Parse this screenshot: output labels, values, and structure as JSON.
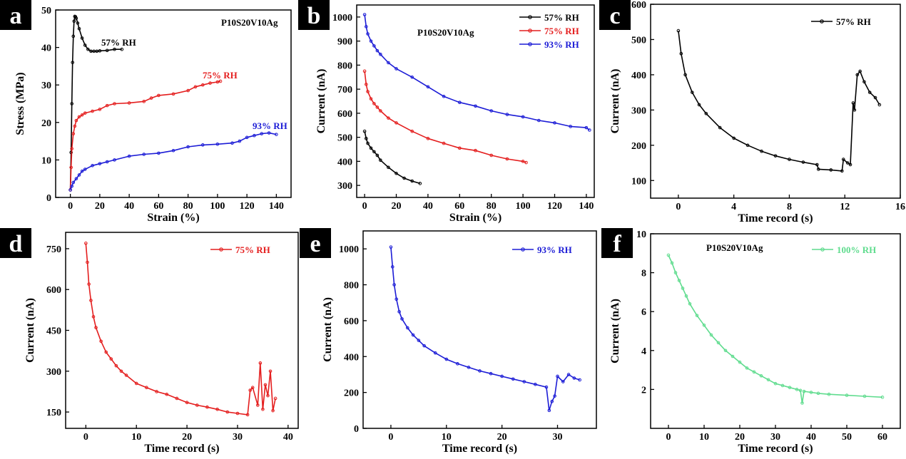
{
  "colors": {
    "black": "#000000",
    "red": "#e41e1e",
    "blue": "#1c1cd6",
    "green": "#5fdc8e"
  },
  "chart_data": [
    {
      "panel": "a",
      "type": "line",
      "title": "P10S20V10Ag",
      "xlabel": "Strain (%)",
      "ylabel": "Stress (MPa)",
      "xlim": [
        -10,
        150
      ],
      "ylim": [
        0,
        50
      ],
      "xticks": [
        0,
        20,
        40,
        60,
        80,
        100,
        120,
        140
      ],
      "yticks": [
        0,
        10,
        20,
        30,
        40,
        50
      ],
      "series": [
        {
          "name": "57% RH",
          "color": "#000000",
          "x": [
            0,
            0.5,
            1,
            1.5,
            2,
            2.5,
            3,
            3.5,
            4,
            5,
            6,
            8,
            10,
            12,
            14,
            16,
            18,
            20,
            25,
            30,
            35
          ],
          "y": [
            2,
            12,
            25,
            36,
            43,
            47,
            48.3,
            48.2,
            47.8,
            46.5,
            45,
            42.5,
            40.6,
            39.5,
            39,
            39,
            39,
            39.1,
            39.2,
            39.5,
            39.5
          ]
        },
        {
          "name": "75% RH",
          "color": "#e41e1e",
          "x": [
            0,
            0.5,
            1,
            2,
            3,
            4,
            6,
            8,
            10,
            15,
            20,
            25,
            30,
            40,
            50,
            55,
            60,
            70,
            80,
            85,
            90,
            95,
            100,
            102
          ],
          "y": [
            2,
            8,
            13,
            17,
            19,
            20.5,
            21.5,
            22,
            22.5,
            23,
            23.5,
            24.5,
            25,
            25.2,
            25.6,
            26.5,
            27.2,
            27.6,
            28.5,
            29.5,
            30,
            30.5,
            30.8,
            31
          ]
        },
        {
          "name": "93% RH",
          "color": "#1c1cd6",
          "x": [
            0,
            1,
            2,
            4,
            6,
            8,
            10,
            15,
            20,
            25,
            30,
            40,
            50,
            60,
            70,
            80,
            90,
            100,
            110,
            115,
            120,
            125,
            130,
            135,
            140
          ],
          "y": [
            2,
            3,
            4,
            5,
            6,
            7,
            7.5,
            8.5,
            9,
            9.5,
            10,
            11,
            11.5,
            11.8,
            12.5,
            13.5,
            14,
            14.2,
            14.5,
            15,
            16,
            16.5,
            17,
            17.2,
            16.8
          ]
        }
      ]
    },
    {
      "panel": "b",
      "type": "line",
      "title": "P10S20V10Ag",
      "xlabel": "Strain (%)",
      "ylabel": "Current (nA)",
      "xlim": [
        -5,
        145
      ],
      "ylim": [
        250,
        1050
      ],
      "xticks": [
        0,
        20,
        40,
        60,
        80,
        100,
        120,
        140
      ],
      "yticks": [
        300,
        400,
        500,
        600,
        700,
        800,
        900,
        1000
      ],
      "series": [
        {
          "name": "57% RH",
          "color": "#000000",
          "x": [
            0,
            1,
            2,
            4,
            6,
            8,
            10,
            15,
            20,
            25,
            30,
            35
          ],
          "y": [
            525,
            495,
            475,
            455,
            440,
            425,
            405,
            375,
            350,
            330,
            318,
            308
          ]
        },
        {
          "name": "75% RH",
          "color": "#e41e1e",
          "x": [
            0,
            1,
            2,
            4,
            6,
            8,
            10,
            15,
            20,
            30,
            40,
            50,
            60,
            70,
            80,
            90,
            100,
            102
          ],
          "y": [
            775,
            720,
            690,
            660,
            640,
            625,
            610,
            580,
            560,
            525,
            495,
            475,
            455,
            445,
            425,
            410,
            400,
            395
          ]
        },
        {
          "name": "93% RH",
          "color": "#1c1cd6",
          "x": [
            0,
            1,
            2,
            4,
            6,
            8,
            10,
            15,
            20,
            30,
            40,
            50,
            60,
            70,
            80,
            90,
            100,
            110,
            120,
            130,
            140,
            142
          ],
          "y": [
            1010,
            960,
            930,
            900,
            880,
            860,
            845,
            810,
            785,
            750,
            710,
            670,
            645,
            630,
            610,
            595,
            585,
            570,
            560,
            545,
            540,
            530
          ]
        }
      ]
    },
    {
      "panel": "c",
      "type": "line",
      "title": "",
      "xlabel": "Time record (s)",
      "ylabel": "Current (nA)",
      "xlim": [
        -2,
        16
      ],
      "ylim": [
        50,
        600
      ],
      "xticks": [
        0,
        4,
        8,
        12,
        16
      ],
      "yticks": [
        100,
        200,
        300,
        400,
        500,
        600
      ],
      "series": [
        {
          "name": "57% RH",
          "color": "#000000",
          "x": [
            0,
            0.2,
            0.5,
            1,
            1.5,
            2,
            3,
            4,
            5,
            6,
            7,
            8,
            9,
            10,
            10.1,
            11,
            11.8,
            11.9,
            12.2,
            12.4,
            12.6,
            12.7,
            12.9,
            13.1,
            13.4,
            13.8,
            14.2,
            14.5
          ],
          "y": [
            525,
            460,
            400,
            350,
            315,
            290,
            250,
            220,
            200,
            183,
            170,
            160,
            152,
            145,
            132,
            130,
            127,
            160,
            150,
            145,
            320,
            300,
            400,
            410,
            380,
            350,
            335,
            315
          ]
        }
      ]
    },
    {
      "panel": "d",
      "type": "line",
      "title": "",
      "xlabel": "Time record (s)",
      "ylabel": "Current (nA)",
      "xlim": [
        -4,
        42
      ],
      "ylim": [
        90,
        810
      ],
      "xticks": [
        0,
        10,
        20,
        30,
        40
      ],
      "yticks": [
        150,
        300,
        450,
        600,
        750
      ],
      "series": [
        {
          "name": "75% RH",
          "color": "#e41e1e",
          "x": [
            0,
            0.3,
            0.6,
            1,
            1.5,
            2,
            3,
            4,
            5,
            6,
            7,
            8,
            10,
            12,
            14,
            16,
            18,
            20,
            22,
            24,
            26,
            28,
            30,
            32,
            32.5,
            33,
            34,
            34.5,
            35,
            35.5,
            36,
            36.5,
            37,
            37.5
          ],
          "y": [
            770,
            700,
            620,
            560,
            500,
            460,
            410,
            370,
            345,
            320,
            300,
            285,
            255,
            240,
            225,
            215,
            200,
            185,
            175,
            168,
            160,
            150,
            145,
            140,
            230,
            240,
            175,
            330,
            160,
            250,
            210,
            300,
            155,
            200
          ]
        }
      ]
    },
    {
      "panel": "e",
      "type": "line",
      "title": "",
      "xlabel": "Time record (s)",
      "ylabel": "Current (nA)",
      "xlim": [
        -5,
        37
      ],
      "ylim": [
        0,
        1100
      ],
      "xticks": [
        0,
        10,
        20,
        30
      ],
      "yticks": [
        0,
        200,
        400,
        600,
        800,
        1000
      ],
      "series": [
        {
          "name": "93% RH",
          "color": "#1c1cd6",
          "x": [
            0,
            0.3,
            0.6,
            1,
            1.5,
            2,
            3,
            4,
            5,
            6,
            8,
            10,
            12,
            14,
            16,
            18,
            20,
            22,
            24,
            26,
            28,
            28.5,
            29,
            29.5,
            30,
            31,
            32,
            33,
            34
          ],
          "y": [
            1010,
            900,
            800,
            720,
            650,
            610,
            560,
            520,
            490,
            460,
            420,
            385,
            360,
            340,
            320,
            305,
            290,
            275,
            260,
            245,
            230,
            100,
            150,
            180,
            290,
            260,
            300,
            280,
            270
          ]
        }
      ]
    },
    {
      "panel": "f",
      "type": "line",
      "title": "P10S20V10Ag",
      "xlabel": "Time record (s)",
      "ylabel": "Current (nA)",
      "xlim": [
        -5,
        65
      ],
      "ylim": [
        0,
        10
      ],
      "xticks": [
        0,
        10,
        20,
        30,
        40,
        50,
        60
      ],
      "yticks": [
        2,
        4,
        6,
        8,
        10
      ],
      "series": [
        {
          "name": "100% RH",
          "color": "#5fdc8e",
          "x": [
            0,
            1,
            2,
            3,
            4,
            5,
            6,
            8,
            10,
            12,
            14,
            16,
            18,
            20,
            22,
            24,
            26,
            28,
            30,
            32,
            34,
            36,
            37,
            37.5,
            38,
            40,
            42,
            45,
            50,
            55,
            60
          ],
          "y": [
            8.9,
            8.5,
            8.0,
            7.6,
            7.2,
            6.8,
            6.4,
            5.8,
            5.3,
            4.8,
            4.4,
            4.0,
            3.7,
            3.4,
            3.1,
            2.9,
            2.7,
            2.5,
            2.3,
            2.2,
            2.1,
            2.0,
            1.95,
            1.3,
            1.9,
            1.85,
            1.8,
            1.75,
            1.7,
            1.65,
            1.6
          ]
        }
      ]
    }
  ]
}
